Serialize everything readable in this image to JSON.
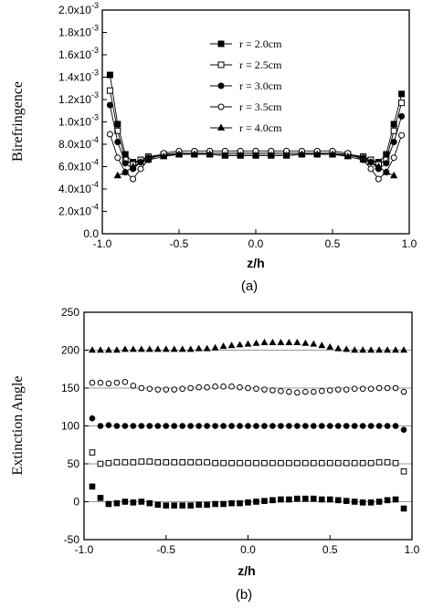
{
  "chart_data": [
    {
      "type": "line",
      "panel_label": "(a)",
      "xlabel": "z/h",
      "ylabel": "Birefringence",
      "xlim": [
        -1.0,
        1.0
      ],
      "ylim": [
        0,
        0.002
      ],
      "x_ticks": [
        "-1.0",
        "-0.5",
        "0.0",
        "0.5",
        "1.0"
      ],
      "y_ticks": [
        {
          "mant": "0.0",
          "exp": ""
        },
        {
          "mant": "2.0x10",
          "exp": "-4"
        },
        {
          "mant": "4.0x10",
          "exp": "-4"
        },
        {
          "mant": "6.0x10",
          "exp": "-4"
        },
        {
          "mant": "8.0x10",
          "exp": "-4"
        },
        {
          "mant": "1.0x10",
          "exp": "-3"
        },
        {
          "mant": "1.2x10",
          "exp": "-3"
        },
        {
          "mant": "1.4x10",
          "exp": "-3"
        },
        {
          "mant": "1.6x10",
          "exp": "-3"
        },
        {
          "mant": "1.8x10",
          "exp": "-3"
        },
        {
          "mant": "2.0x10",
          "exp": "-3"
        }
      ],
      "legend_position": "top-center",
      "series": [
        {
          "name": "r = 2.0cm",
          "marker": "square-filled",
          "x": [
            -0.95,
            -0.9,
            -0.85,
            -0.8,
            -0.75,
            -0.7,
            -0.6,
            -0.5,
            -0.4,
            -0.3,
            -0.2,
            -0.1,
            0.0,
            0.1,
            0.2,
            0.3,
            0.4,
            0.5,
            0.6,
            0.7,
            0.75,
            0.8,
            0.85,
            0.9,
            0.95
          ],
          "y": [
            0.00142,
            0.00098,
            0.00071,
            0.00064,
            0.00066,
            0.00068,
            0.0007,
            0.00071,
            0.00071,
            0.00071,
            0.0007,
            0.0007,
            0.0007,
            0.0007,
            0.0007,
            0.00071,
            0.00071,
            0.00071,
            0.0007,
            0.00068,
            0.00066,
            0.00064,
            0.00071,
            0.00098,
            0.00125
          ]
        },
        {
          "name": "r = 2.5cm",
          "marker": "square-open",
          "x": [
            -0.95,
            -0.9,
            -0.85,
            -0.8,
            -0.75,
            -0.7,
            -0.6,
            -0.5,
            -0.4,
            -0.3,
            -0.2,
            -0.1,
            0.0,
            0.1,
            0.2,
            0.3,
            0.4,
            0.5,
            0.6,
            0.7,
            0.75,
            0.8,
            0.85,
            0.9,
            0.95
          ],
          "y": [
            0.00128,
            0.00092,
            0.00066,
            0.00062,
            0.00066,
            0.00069,
            0.00071,
            0.00072,
            0.00072,
            0.00072,
            0.00072,
            0.00072,
            0.00072,
            0.00072,
            0.00072,
            0.00072,
            0.00072,
            0.00072,
            0.00071,
            0.00069,
            0.00066,
            0.00062,
            0.00066,
            0.00092,
            0.00117
          ]
        },
        {
          "name": "r = 3.0cm",
          "marker": "circle-filled",
          "x": [
            -0.95,
            -0.9,
            -0.85,
            -0.8,
            -0.75,
            -0.7,
            -0.6,
            -0.5,
            -0.4,
            -0.3,
            -0.2,
            -0.1,
            0.0,
            0.1,
            0.2,
            0.3,
            0.4,
            0.5,
            0.6,
            0.7,
            0.75,
            0.8,
            0.85,
            0.9,
            0.95
          ],
          "y": [
            0.00115,
            0.00082,
            0.00063,
            0.00058,
            0.00064,
            0.00068,
            0.00071,
            0.00072,
            0.00072,
            0.00072,
            0.00072,
            0.00072,
            0.00072,
            0.00072,
            0.00072,
            0.00072,
            0.00072,
            0.00072,
            0.00071,
            0.00068,
            0.00064,
            0.00058,
            0.00063,
            0.00082,
            0.00105
          ]
        },
        {
          "name": "r = 3.5cm",
          "marker": "circle-open",
          "x": [
            -0.95,
            -0.9,
            -0.85,
            -0.8,
            -0.75,
            -0.7,
            -0.6,
            -0.5,
            -0.4,
            -0.3,
            -0.2,
            -0.1,
            0.0,
            0.1,
            0.2,
            0.3,
            0.4,
            0.5,
            0.6,
            0.7,
            0.75,
            0.8,
            0.85,
            0.9,
            0.95
          ],
          "y": [
            0.00089,
            0.00068,
            0.00055,
            0.00049,
            0.00058,
            0.00066,
            0.00072,
            0.00074,
            0.00074,
            0.00074,
            0.00074,
            0.00074,
            0.00074,
            0.00074,
            0.00074,
            0.00074,
            0.00074,
            0.00074,
            0.00072,
            0.00066,
            0.00058,
            0.00049,
            0.00055,
            0.00068,
            0.00088
          ]
        },
        {
          "name": "r = 4.0cm",
          "marker": "triangle-filled",
          "x": [
            -0.9,
            -0.85,
            -0.8,
            -0.75,
            -0.7,
            -0.6,
            -0.5,
            -0.4,
            -0.3,
            -0.2,
            -0.1,
            0.0,
            0.1,
            0.2,
            0.3,
            0.4,
            0.5,
            0.6,
            0.7,
            0.75,
            0.8,
            0.85,
            0.9
          ],
          "y": [
            0.00052,
            0.00055,
            0.0006,
            0.00064,
            0.00066,
            0.00069,
            0.00071,
            0.00071,
            0.00071,
            0.0007,
            0.0007,
            0.0007,
            0.0007,
            0.0007,
            0.00071,
            0.00071,
            0.00071,
            0.00069,
            0.00066,
            0.00064,
            0.0006,
            0.00055,
            0.00052
          ]
        }
      ]
    },
    {
      "type": "line",
      "panel_label": "(b)",
      "xlabel": "z/h",
      "ylabel": "Extinction Angle",
      "xlim": [
        -1.0,
        1.0
      ],
      "ylim": [
        -50,
        250
      ],
      "x_ticks": [
        "-1.0",
        "-0.5",
        "0.0",
        "0.5",
        "1.0"
      ],
      "y_ticks": [
        "-50",
        "0",
        "50",
        "100",
        "150",
        "200",
        "250"
      ],
      "reference_lines": [
        0,
        50,
        100,
        150,
        200
      ],
      "x": [
        -0.95,
        -0.9,
        -0.85,
        -0.8,
        -0.75,
        -0.7,
        -0.65,
        -0.6,
        -0.55,
        -0.5,
        -0.45,
        -0.4,
        -0.35,
        -0.3,
        -0.25,
        -0.2,
        -0.15,
        -0.1,
        -0.05,
        0.0,
        0.05,
        0.1,
        0.15,
        0.2,
        0.25,
        0.3,
        0.35,
        0.4,
        0.45,
        0.5,
        0.55,
        0.6,
        0.65,
        0.7,
        0.75,
        0.8,
        0.85,
        0.9,
        0.95
      ],
      "series": [
        {
          "marker": "square-filled",
          "y": [
            20,
            5,
            -3,
            -2,
            0,
            -1,
            0,
            -2,
            -4,
            -5,
            -5,
            -5,
            -5,
            -4,
            -4,
            -3,
            -3,
            -2,
            -2,
            -1,
            0,
            1,
            2,
            3,
            3,
            4,
            4,
            4,
            3,
            3,
            2,
            1,
            0,
            -1,
            -1,
            0,
            2,
            3,
            -9
          ]
        },
        {
          "marker": "square-open",
          "y": [
            65,
            50,
            51,
            52,
            52,
            52,
            53,
            53,
            52,
            52,
            52,
            52,
            52,
            52,
            52,
            51,
            51,
            51,
            51,
            51,
            51,
            51,
            51,
            51,
            51,
            51,
            51,
            51,
            51,
            51,
            51,
            51,
            51,
            51,
            51,
            52,
            52,
            51,
            40
          ]
        },
        {
          "marker": "circle-filled",
          "y": [
            110,
            100,
            101,
            100,
            100,
            100,
            100,
            100,
            100,
            100,
            100,
            100,
            100,
            100,
            100,
            100,
            100,
            100,
            100,
            100,
            100,
            100,
            100,
            100,
            100,
            100,
            100,
            100,
            100,
            100,
            100,
            100,
            100,
            100,
            100,
            100,
            100,
            100,
            95
          ]
        },
        {
          "marker": "circle-open",
          "y": [
            157,
            157,
            156,
            157,
            158,
            153,
            150,
            149,
            148,
            148,
            148,
            149,
            150,
            151,
            151,
            152,
            152,
            152,
            151,
            150,
            149,
            148,
            147,
            146,
            145,
            144,
            145,
            145,
            146,
            147,
            148,
            148,
            149,
            149,
            149,
            150,
            150,
            150,
            145
          ]
        },
        {
          "marker": "triangle-filled",
          "y": [
            200,
            200,
            200,
            200,
            201,
            201,
            201,
            201,
            201,
            201,
            201,
            201,
            201,
            202,
            202,
            203,
            205,
            206,
            207,
            208,
            209,
            210,
            210,
            210,
            210,
            210,
            209,
            208,
            206,
            204,
            202,
            201,
            200,
            200,
            200,
            200,
            200,
            200,
            200
          ]
        }
      ]
    }
  ]
}
